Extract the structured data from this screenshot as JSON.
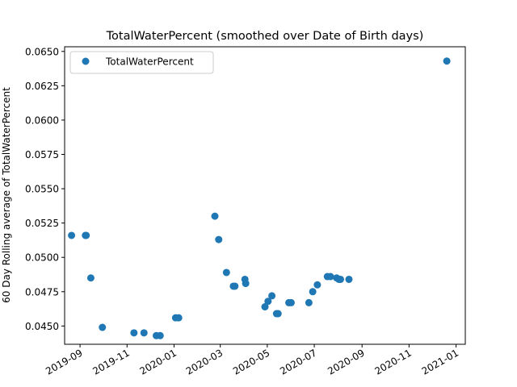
{
  "chart_data": {
    "type": "scatter",
    "title": "TotalWaterPercent (smoothed over Date of Birth days)",
    "xlabel": "",
    "ylabel": "60 Day Rolling average of TotalWaterPercent",
    "xlim": [
      "2019-08-12",
      "2021-01-13"
    ],
    "ylim": [
      0.04367,
      0.06534
    ],
    "x_ticks": [
      "2019-09",
      "2019-11",
      "2020-01",
      "2020-03",
      "2020-05",
      "2020-07",
      "2020-09",
      "2020-11",
      "2021-01"
    ],
    "y_ticks": [
      0.045,
      0.0475,
      0.05,
      0.0525,
      0.055,
      0.0575,
      0.06,
      0.0625,
      0.065
    ],
    "grid": false,
    "legend": "upper-left",
    "color": "#1f77b4",
    "series": [
      {
        "name": "TotalWaterPercent",
        "points": [
          {
            "x": "2019-08-21",
            "y": 0.0516
          },
          {
            "x": "2019-09-08",
            "y": 0.0516
          },
          {
            "x": "2019-09-09",
            "y": 0.0516
          },
          {
            "x": "2019-09-15",
            "y": 0.0485
          },
          {
            "x": "2019-09-30",
            "y": 0.0449
          },
          {
            "x": "2019-11-10",
            "y": 0.0445
          },
          {
            "x": "2019-11-23",
            "y": 0.0445
          },
          {
            "x": "2019-12-09",
            "y": 0.0443
          },
          {
            "x": "2019-12-14",
            "y": 0.0443
          },
          {
            "x": "2020-01-03",
            "y": 0.0456
          },
          {
            "x": "2020-01-07",
            "y": 0.0456
          },
          {
            "x": "2020-02-23",
            "y": 0.053
          },
          {
            "x": "2020-02-28",
            "y": 0.0513
          },
          {
            "x": "2020-03-09",
            "y": 0.0489
          },
          {
            "x": "2020-03-18",
            "y": 0.0479
          },
          {
            "x": "2020-03-20",
            "y": 0.0479
          },
          {
            "x": "2020-04-02",
            "y": 0.0484
          },
          {
            "x": "2020-04-03",
            "y": 0.0481
          },
          {
            "x": "2020-04-28",
            "y": 0.0464
          },
          {
            "x": "2020-05-02",
            "y": 0.0468
          },
          {
            "x": "2020-05-07",
            "y": 0.0472
          },
          {
            "x": "2020-05-13",
            "y": 0.0459
          },
          {
            "x": "2020-05-15",
            "y": 0.0459
          },
          {
            "x": "2020-05-29",
            "y": 0.0467
          },
          {
            "x": "2020-06-01",
            "y": 0.0467
          },
          {
            "x": "2020-06-24",
            "y": 0.0467
          },
          {
            "x": "2020-06-29",
            "y": 0.0475
          },
          {
            "x": "2020-07-05",
            "y": 0.048
          },
          {
            "x": "2020-07-18",
            "y": 0.0486
          },
          {
            "x": "2020-07-22",
            "y": 0.0486
          },
          {
            "x": "2020-07-30",
            "y": 0.0485
          },
          {
            "x": "2020-08-02",
            "y": 0.0484
          },
          {
            "x": "2020-08-04",
            "y": 0.0484
          },
          {
            "x": "2020-08-15",
            "y": 0.0484
          },
          {
            "x": "2020-12-20",
            "y": 0.0643
          }
        ]
      }
    ]
  }
}
